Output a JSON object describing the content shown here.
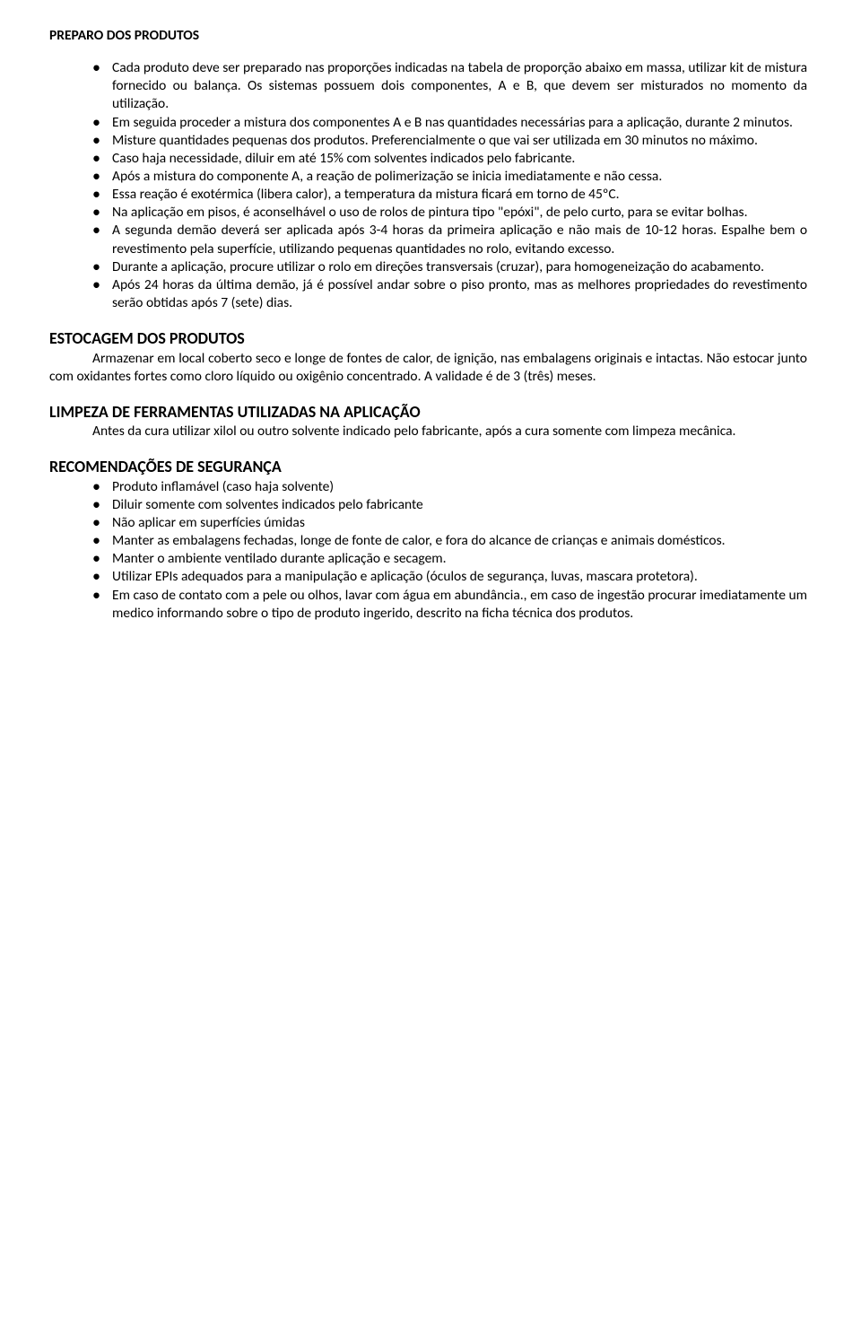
{
  "section1": {
    "heading": "PREPARO DOS PRODUTOS",
    "bullets": [
      "Cada produto deve ser preparado nas proporções indicadas na tabela de proporção abaixo em massa, utilizar kit de mistura fornecido ou balança. Os sistemas possuem dois componentes, A e B, que devem ser misturados no momento da utilização.",
      "Em seguida proceder a mistura dos componentes A e B nas quantidades necessárias para a aplicação, durante 2 minutos.",
      "Misture quantidades pequenas dos produtos. Preferencialmente o que vai ser utilizada em 30 minutos no máximo.",
      "Caso haja necessidade, diluir em até 15% com solventes indicados pelo fabricante.",
      "Após a mistura do componente A, a reação de polimerização se inicia imediatamente e não cessa.",
      "Essa reação é exotérmica (libera calor), a temperatura da mistura ficará em torno de 45ºC.",
      "Na aplicação em pisos, é aconselhável o uso de rolos de pintura tipo \"epóxi\", de pelo curto, para se evitar bolhas.",
      "A segunda demão deverá ser aplicada após 3-4 horas da primeira aplicação e não mais de 10-12 horas. Espalhe bem o revestimento pela superfície, utilizando pequenas quantidades no rolo, evitando excesso.",
      "Durante a aplicação, procure utilizar o rolo em direções transversais (cruzar), para homogeneização do acabamento.",
      "Após 24 horas da última demão, já é possível andar sobre o piso pronto, mas as melhores propriedades do revestimento serão obtidas após 7 (sete) dias."
    ]
  },
  "section2": {
    "heading": "ESTOCAGEM DOS PRODUTOS",
    "paragraph": "Armazenar em local coberto seco e longe de fontes de calor, de ignição, nas embalagens originais e intactas. Não estocar junto com oxidantes fortes como cloro líquido ou oxigênio concentrado. A validade é de 3 (três) meses."
  },
  "section3": {
    "heading": "LIMPEZA DE FERRAMENTAS UTILIZADAS NA APLICAÇÃO",
    "paragraph": "Antes da cura utilizar xilol ou outro solvente indicado pelo fabricante, após a cura somente com limpeza mecânica."
  },
  "section4": {
    "heading": "RECOMENDAÇÕES DE SEGURANÇA",
    "bullets": [
      "Produto inflamável (caso haja solvente)",
      "Diluir somente com solventes indicados pelo fabricante",
      "Não aplicar em superfícies úmidas",
      "Manter as embalagens fechadas, longe de fonte de calor, e fora do alcance de crianças e animais domésticos.",
      "Manter o ambiente ventilado durante aplicação e secagem.",
      "Utilizar EPIs adequados para a manipulação e aplicação (óculos de segurança, luvas, mascara protetora).",
      "Em caso de contato com a pele ou olhos, lavar com água em abundância., em caso de ingestão procurar imediatamente um medico informando sobre o tipo de produto ingerido, descrito na ficha técnica dos produtos."
    ]
  }
}
